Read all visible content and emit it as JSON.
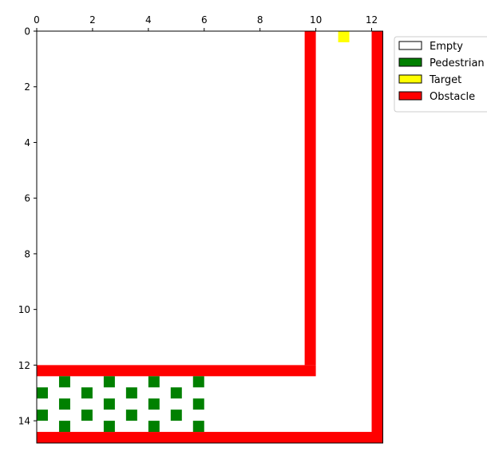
{
  "chart_data": {
    "type": "heatmap",
    "title": "",
    "xlabel": "",
    "ylabel": "",
    "grid": false,
    "x_axis_position": "top",
    "y_axis_inverted": true,
    "xlim": [
      0,
      12.4
    ],
    "ylim": [
      14.8,
      0
    ],
    "xticks": [
      0,
      2,
      4,
      6,
      8,
      10,
      12
    ],
    "yticks": [
      0,
      2,
      4,
      6,
      8,
      10,
      12,
      14
    ],
    "cell_size": 0.4,
    "grid_cols": 31,
    "grid_rows": 37,
    "legend": {
      "placement": "upper-left-outside",
      "entries": [
        {
          "label": "Empty",
          "color": "#ffffff"
        },
        {
          "label": "Pedestrian",
          "color": "#008000"
        },
        {
          "label": "Target",
          "color": "#ffff00"
        },
        {
          "label": "Obstacle",
          "color": "#ff0000"
        }
      ]
    },
    "cells": {
      "Obstacle": [
        {
          "name": "obstacle-inner-wall",
          "x0": 9.6,
          "x1": 10.0,
          "y0": 0.0,
          "y1": 12.0
        },
        {
          "name": "obstacle-inner-floor",
          "x0": 0.0,
          "x1": 10.0,
          "y0": 12.0,
          "y1": 12.4
        },
        {
          "name": "obstacle-outer-wall",
          "x0": 12.0,
          "x1": 12.4,
          "y0": 0.0,
          "y1": 14.8
        },
        {
          "name": "obstacle-bottom-wall",
          "x0": 0.0,
          "x1": 12.4,
          "y0": 14.4,
          "y1": 14.8
        }
      ],
      "Target": [
        {
          "x": 11.0,
          "y": 0.2
        }
      ],
      "Pedestrian": [
        {
          "x": 1.0,
          "y": 12.6
        },
        {
          "x": 2.6,
          "y": 12.6
        },
        {
          "x": 4.2,
          "y": 12.6
        },
        {
          "x": 5.8,
          "y": 12.6
        },
        {
          "x": 0.2,
          "y": 13.0
        },
        {
          "x": 1.8,
          "y": 13.0
        },
        {
          "x": 3.4,
          "y": 13.0
        },
        {
          "x": 5.0,
          "y": 13.0
        },
        {
          "x": 1.0,
          "y": 13.4
        },
        {
          "x": 2.6,
          "y": 13.4
        },
        {
          "x": 4.2,
          "y": 13.4
        },
        {
          "x": 5.8,
          "y": 13.4
        },
        {
          "x": 0.2,
          "y": 13.8
        },
        {
          "x": 1.8,
          "y": 13.8
        },
        {
          "x": 3.4,
          "y": 13.8
        },
        {
          "x": 5.0,
          "y": 13.8
        },
        {
          "x": 1.0,
          "y": 14.2
        },
        {
          "x": 2.6,
          "y": 14.2
        },
        {
          "x": 4.2,
          "y": 14.2
        },
        {
          "x": 5.8,
          "y": 14.2
        }
      ]
    }
  }
}
